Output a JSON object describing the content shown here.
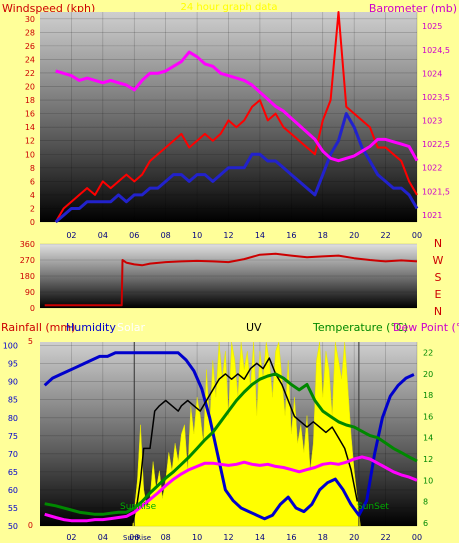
{
  "colors": {
    "background": "#ffff99",
    "windspeed": "#ff0000",
    "windspeed_avg": "#2222cc",
    "barometer": "#ff00ff",
    "direction": "#cc0000",
    "rainfall": "#cc0000",
    "humidity": "#0000cc",
    "solar": "#ffff00",
    "uv": "#000000",
    "temperature": "#008800",
    "dew_point": "#ff00ff"
  },
  "chart_data": [
    {
      "type": "line",
      "title": "24 hour graph data",
      "left_axis_title": "Windspeed (kph)",
      "right_axis_title": "Barometer (mb)",
      "x_ticks": [
        "02",
        "04",
        "06",
        "08",
        "10",
        "12",
        "14",
        "16",
        "18",
        "20",
        "22",
        "00"
      ],
      "y_ticks": [
        "0",
        "2",
        "4",
        "6",
        "8",
        "10",
        "12",
        "14",
        "16",
        "18",
        "20",
        "22",
        "24",
        "26",
        "28",
        "30"
      ],
      "ylim": [
        0,
        31
      ],
      "y2_ticks": [
        "1021",
        "1021,5",
        "1022",
        "1022,5",
        "1023",
        "1023,5",
        "1024",
        "1024,5",
        "1025"
      ],
      "y2lim": [
        1020.85,
        1025.3
      ],
      "grid": true,
      "series": [
        {
          "role": "windspeed",
          "x": [
            1.0,
            1.5,
            2.0,
            2.5,
            3.0,
            3.5,
            4.0,
            4.5,
            5.0,
            5.5,
            6.0,
            6.5,
            7.0,
            7.5,
            8.0,
            8.5,
            9.0,
            9.5,
            10.0,
            10.5,
            11.0,
            11.5,
            12.0,
            12.5,
            13.0,
            13.5,
            14.0,
            14.5,
            15.0,
            15.5,
            16.0,
            16.5,
            17.0,
            17.5,
            18.0,
            18.5,
            19.0,
            19.5,
            20.0,
            20.5,
            21.0,
            21.5,
            22.0,
            22.5,
            23.0,
            23.5,
            24.0
          ],
          "y": [
            0,
            2,
            3,
            4,
            5,
            4,
            6,
            5,
            6,
            7,
            6,
            7,
            9,
            10,
            11,
            12,
            13,
            11,
            12,
            13,
            12,
            13,
            15,
            14,
            15,
            17,
            18,
            15,
            16,
            14,
            13,
            12,
            11,
            10,
            15,
            18,
            31,
            17,
            16,
            15,
            14,
            11,
            11,
            10,
            9,
            6,
            4
          ]
        },
        {
          "role": "windspeed_avg",
          "x": [
            1.0,
            1.5,
            2.0,
            2.5,
            3.0,
            3.5,
            4.0,
            4.5,
            5.0,
            5.5,
            6.0,
            6.5,
            7.0,
            7.5,
            8.0,
            8.5,
            9.0,
            9.5,
            10.0,
            10.5,
            11.0,
            11.5,
            12.0,
            12.5,
            13.0,
            13.5,
            14.0,
            14.5,
            15.0,
            15.5,
            16.0,
            16.5,
            17.0,
            17.5,
            18.0,
            18.5,
            19.0,
            19.5,
            20.0,
            20.5,
            21.0,
            21.5,
            22.0,
            22.5,
            23.0,
            23.5,
            24.0
          ],
          "y": [
            0,
            1,
            2,
            2,
            3,
            3,
            3,
            3,
            4,
            3,
            4,
            4,
            5,
            5,
            6,
            7,
            7,
            6,
            7,
            7,
            6,
            7,
            8,
            8,
            8,
            10,
            10,
            9,
            9,
            8,
            7,
            6,
            5,
            4,
            7,
            10,
            12,
            16,
            14,
            11,
            9,
            7,
            6,
            5,
            5,
            4,
            2
          ]
        },
        {
          "role": "barometer",
          "axis": "right",
          "x": [
            1.0,
            1.5,
            2.0,
            2.5,
            3.0,
            3.5,
            4.0,
            4.5,
            5.0,
            5.5,
            6.0,
            6.5,
            7.0,
            7.5,
            8.0,
            8.5,
            9.0,
            9.5,
            10.0,
            10.5,
            11.0,
            11.5,
            12.0,
            12.5,
            13.0,
            13.5,
            14.0,
            14.5,
            15.0,
            15.5,
            16.0,
            16.5,
            17.0,
            17.5,
            18.0,
            18.5,
            19.0,
            19.5,
            20.0,
            20.5,
            21.0,
            21.5,
            22.0,
            22.5,
            23.0,
            23.5,
            24.0
          ],
          "y": [
            1024.05,
            1024.0,
            1023.95,
            1023.85,
            1023.9,
            1023.85,
            1023.8,
            1023.85,
            1023.8,
            1023.75,
            1023.65,
            1023.85,
            1024.0,
            1024.0,
            1024.05,
            1024.15,
            1024.25,
            1024.45,
            1024.35,
            1024.2,
            1024.15,
            1024.0,
            1023.95,
            1023.9,
            1023.85,
            1023.75,
            1023.6,
            1023.45,
            1023.3,
            1023.2,
            1023.05,
            1022.9,
            1022.75,
            1022.6,
            1022.35,
            1022.2,
            1022.15,
            1022.2,
            1022.25,
            1022.35,
            1022.45,
            1022.6,
            1022.6,
            1022.55,
            1022.5,
            1022.45,
            1022.15
          ]
        }
      ]
    },
    {
      "type": "line",
      "right_labels": [
        "N",
        "W",
        "S",
        "E",
        "N"
      ],
      "x_ticks": [],
      "y_ticks": [
        "0",
        "90",
        "180",
        "270",
        "360"
      ],
      "ylim": [
        0,
        360
      ],
      "grid": true,
      "series": [
        {
          "role": "direction",
          "x": [
            0.3,
            5.2,
            5.25,
            5.5,
            6.0,
            6.5,
            7.0,
            8.0,
            9.0,
            10.0,
            11.0,
            12.0,
            13.0,
            14.0,
            15.0,
            16.0,
            17.0,
            18.0,
            19.0,
            20.0,
            21.0,
            22.0,
            23.0,
            24.0
          ],
          "y": [
            15,
            15,
            270,
            255,
            245,
            240,
            250,
            258,
            262,
            265,
            262,
            258,
            275,
            300,
            305,
            295,
            285,
            290,
            295,
            280,
            270,
            262,
            268,
            262
          ]
        }
      ]
    },
    {
      "type": "line",
      "title_rain": "Rainfall (mm)",
      "title_humidity": "Humidity",
      "title_solar": "Solar",
      "title_uv": "UV",
      "title_temperature": "Temperature (°C)",
      "title_dewpoint": "Dew Point (°C)",
      "x_ticks": [
        "02",
        "04",
        "06",
        "08",
        "10",
        "12",
        "14",
        "16",
        "18",
        "20",
        "22",
        "00"
      ],
      "sunrise_label": "SunRise",
      "sunset_label": "SunSet",
      "sunrise_tick": "SunRise",
      "y_ticks": [
        "50",
        "55",
        "60",
        "65",
        "70",
        "75",
        "80",
        "85",
        "90",
        "95",
        "100"
      ],
      "ylim": [
        50,
        101
      ],
      "y2_ticks": [
        "6",
        "8",
        "10",
        "12",
        "14",
        "16",
        "18",
        "20",
        "22"
      ],
      "y2lim": [
        5.7,
        23
      ],
      "rain_axis_label": "5",
      "rain_axis_label_min": "0",
      "grid": true,
      "series": [
        {
          "role": "humidity",
          "x": [
            0.3,
            0.8,
            1.3,
            1.8,
            2.3,
            2.8,
            3.3,
            3.8,
            4.3,
            4.8,
            5.3,
            5.8,
            6.3,
            6.8,
            7.3,
            7.8,
            8.3,
            8.8,
            9.3,
            9.8,
            10.3,
            10.8,
            11.3,
            11.8,
            12.3,
            12.8,
            13.3,
            13.8,
            14.3,
            14.8,
            15.3,
            15.8,
            16.3,
            16.8,
            17.3,
            17.8,
            18.3,
            18.8,
            19.3,
            19.8,
            20.3,
            20.8,
            21.3,
            21.8,
            22.3,
            22.8,
            23.3,
            23.8
          ],
          "y": [
            89,
            91,
            92,
            93,
            94,
            95,
            96,
            97,
            97,
            98,
            98,
            98,
            98,
            98,
            98,
            98,
            98,
            98,
            96,
            93,
            88,
            80,
            70,
            60,
            57,
            55,
            54,
            53,
            52,
            53,
            56,
            58,
            55,
            54,
            56,
            60,
            62,
            63,
            60,
            56,
            53,
            57,
            70,
            80,
            86,
            89,
            91,
            92
          ]
        },
        {
          "role": "uv",
          "x": [
            5.9,
            6.2,
            6.4,
            6.6,
            7.0,
            7.3,
            7.6,
            8.0,
            8.4,
            8.8,
            9.0,
            9.4,
            9.8,
            10.2,
            10.6,
            11.0,
            11.4,
            11.8,
            12.2,
            12.6,
            13.0,
            13.4,
            13.8,
            14.2,
            14.6,
            15.0,
            15.4,
            15.8,
            16.2,
            16.6,
            17.0,
            17.4,
            17.8,
            18.2,
            18.6,
            19.0,
            19.4,
            19.8,
            20.2
          ],
          "y": [
            6.0,
            8.0,
            10.0,
            13.0,
            13.0,
            16.5,
            17.0,
            17.5,
            17.0,
            16.5,
            17.0,
            17.5,
            17.0,
            16.5,
            17.5,
            18.5,
            19.5,
            20.0,
            19.5,
            20.0,
            19.5,
            20.5,
            21.0,
            20.5,
            21.5,
            20.0,
            19.0,
            17.5,
            16.0,
            15.5,
            15.0,
            15.5,
            15.0,
            14.5,
            15.0,
            14.0,
            13.0,
            11.0,
            8.0
          ]
        },
        {
          "role": "temperature",
          "axis": "right",
          "x": [
            0.3,
            1.0,
            1.5,
            2.0,
            2.5,
            3.0,
            3.5,
            4.0,
            4.5,
            5.0,
            5.5,
            6.0,
            6.5,
            7.0,
            7.5,
            8.0,
            8.5,
            9.0,
            9.5,
            10.0,
            10.5,
            11.0,
            11.5,
            12.0,
            12.5,
            13.0,
            13.5,
            14.0,
            14.5,
            15.0,
            15.5,
            16.0,
            16.5,
            17.0,
            17.5,
            18.0,
            18.5,
            19.0,
            19.5,
            20.0,
            20.5,
            21.0,
            21.5,
            22.0,
            22.5,
            23.0,
            23.5,
            24.0
          ],
          "y": [
            7.8,
            7.6,
            7.4,
            7.2,
            7.0,
            6.9,
            6.8,
            6.8,
            6.9,
            7.0,
            7.0,
            7.4,
            8.0,
            8.8,
            9.5,
            10.2,
            10.8,
            11.5,
            12.2,
            13.0,
            13.8,
            14.5,
            15.5,
            16.5,
            17.5,
            18.3,
            19.0,
            19.5,
            19.8,
            20.0,
            19.6,
            19.0,
            18.5,
            19.0,
            17.5,
            16.5,
            16.0,
            15.5,
            15.2,
            15.0,
            14.6,
            14.2,
            14.0,
            13.5,
            13.0,
            12.6,
            12.2,
            11.8
          ]
        },
        {
          "role": "dew_point",
          "axis": "right",
          "x": [
            0.3,
            1.0,
            1.5,
            2.0,
            2.5,
            3.0,
            3.5,
            4.0,
            4.5,
            5.0,
            5.5,
            6.0,
            6.5,
            7.0,
            7.5,
            8.0,
            8.5,
            9.0,
            9.5,
            10.0,
            10.5,
            11.0,
            11.5,
            12.0,
            12.5,
            13.0,
            13.5,
            14.0,
            14.5,
            15.0,
            15.5,
            16.0,
            16.5,
            17.0,
            17.5,
            18.0,
            18.5,
            19.0,
            19.5,
            20.0,
            20.5,
            21.0,
            21.5,
            22.0,
            22.5,
            23.0,
            23.5,
            24.0
          ],
          "y": [
            6.8,
            6.5,
            6.3,
            6.2,
            6.2,
            6.2,
            6.3,
            6.3,
            6.4,
            6.5,
            6.6,
            7.0,
            7.6,
            8.2,
            8.8,
            9.5,
            10.1,
            10.6,
            11.0,
            11.3,
            11.6,
            11.6,
            11.5,
            11.4,
            11.5,
            11.7,
            11.5,
            11.4,
            11.5,
            11.3,
            11.2,
            11.0,
            10.8,
            11.0,
            11.2,
            11.5,
            11.6,
            11.5,
            11.7,
            12.0,
            12.2,
            12.0,
            11.6,
            11.2,
            10.8,
            10.5,
            10.3,
            10.0
          ]
        }
      ],
      "solar_x": [
        5.9,
        6.2,
        6.4,
        6.6,
        6.8,
        7.0,
        7.2,
        7.4,
        7.6,
        7.8,
        8.0,
        8.2,
        8.4,
        8.6,
        8.8,
        9.0,
        9.2,
        9.4,
        9.6,
        9.8,
        10.0,
        10.2,
        10.4,
        10.6,
        10.8,
        11.0,
        11.2,
        11.4,
        11.6,
        11.8,
        12.0,
        12.2,
        12.4,
        12.6,
        12.8,
        13.0,
        13.2,
        13.4,
        13.6,
        13.8,
        14.0,
        14.2,
        14.4,
        14.6,
        14.8,
        15.0,
        15.2,
        15.4,
        15.6,
        15.8,
        16.0,
        16.2,
        16.4,
        16.6,
        16.8,
        17.0,
        17.2,
        17.4,
        17.6,
        17.8,
        18.0,
        18.2,
        18.4,
        18.6,
        18.8,
        19.0,
        19.2,
        19.4,
        19.6,
        19.8,
        20.0,
        20.2,
        20.4
      ],
      "solar_y": [
        0.0,
        0.25,
        0.55,
        0.2,
        0.1,
        0.15,
        0.35,
        0.2,
        0.3,
        0.15,
        0.25,
        0.4,
        0.3,
        0.45,
        0.35,
        0.5,
        0.55,
        0.3,
        0.65,
        0.5,
        0.7,
        0.6,
        0.45,
        0.85,
        0.55,
        0.9,
        0.7,
        1.0,
        0.8,
        0.95,
        0.6,
        1.0,
        0.9,
        0.7,
        1.0,
        0.85,
        0.95,
        0.75,
        1.0,
        0.6,
        0.95,
        0.8,
        1.0,
        0.9,
        0.7,
        0.95,
        1.0,
        0.8,
        0.6,
        0.9,
        0.5,
        0.7,
        0.45,
        0.55,
        0.4,
        0.6,
        0.3,
        0.45,
        0.9,
        1.0,
        0.7,
        0.95,
        0.85,
        0.6,
        1.0,
        0.9,
        0.8,
        1.0,
        0.75,
        0.5,
        0.3,
        0.15,
        0.0
      ],
      "sunrise_x": 6.0,
      "sunset_x": 20.3
    }
  ]
}
